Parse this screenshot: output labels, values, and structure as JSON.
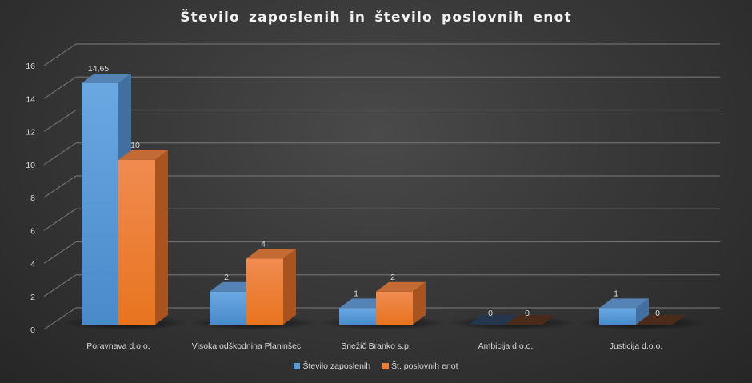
{
  "chart_data": {
    "type": "bar",
    "subtype": "3d-clustered-column",
    "title": "Število zaposlenih in število poslovnih enot",
    "xlabel": "",
    "ylabel": "",
    "ylim": [
      0,
      16
    ],
    "y_ticks": [
      "0",
      "2",
      "4",
      "6",
      "8",
      "10",
      "12",
      "14",
      "16"
    ],
    "grid": true,
    "legend_position": "bottom",
    "categories": [
      "Poravnava d.o.o.",
      "Visoka odškodnina Planinšec",
      "Snežič Branko s.p.",
      "Ambicija d.o.o.",
      "Justicija d.o.o."
    ],
    "series": [
      {
        "name": "Število zaposlenih",
        "color": "#5b9bd5",
        "values": [
          14.65,
          2,
          1,
          0,
          1
        ],
        "labels": [
          "14,65",
          "2",
          "1",
          "0",
          "1"
        ]
      },
      {
        "name": "Št. poslovnih enot",
        "color": "#ed7d31",
        "values": [
          10,
          4,
          2,
          0,
          0
        ],
        "labels": [
          "10",
          "4",
          "2",
          "0",
          "0"
        ]
      }
    ]
  },
  "legend": {
    "items": [
      {
        "label": "Število zaposlenih",
        "color": "#5b9bd5"
      },
      {
        "label": "Št. poslovnih enot",
        "color": "#ed7d31"
      }
    ]
  }
}
